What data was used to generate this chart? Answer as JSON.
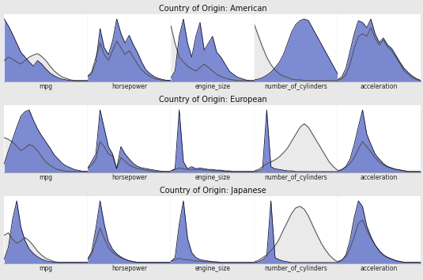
{
  "rows": [
    "American",
    "European",
    "Japanese"
  ],
  "cols": [
    "mpg",
    "horsepower",
    "engine_size",
    "number_of_cylinders",
    "acceleration"
  ],
  "fig_bg": "#e8e8e8",
  "panel_bg": "#ffffff",
  "blue_fill": "#6677cc",
  "blue_alpha": 0.85,
  "gray_line_color": "#555555",
  "blue_line_color": "#111133",
  "overall_fill_color": "#cccccc",
  "overall_fill_alpha": 0.4,
  "sep_line_color": "#777777",
  "American": {
    "mpg": {
      "group": [
        0.9,
        0.8,
        0.68,
        0.55,
        0.42,
        0.35,
        0.28,
        0.22,
        0.3,
        0.25,
        0.18,
        0.12,
        0.08,
        0.05,
        0.03,
        0.02,
        0.01,
        0.01,
        0.01,
        0.01,
        0.01
      ],
      "overall": [
        0.3,
        0.35,
        0.32,
        0.28,
        0.25,
        0.3,
        0.35,
        0.38,
        0.4,
        0.36,
        0.3,
        0.22,
        0.15,
        0.1,
        0.06,
        0.04,
        0.02,
        0.01,
        0.01,
        0.01,
        0.01
      ]
    },
    "horsepower": {
      "group": [
        0.05,
        0.08,
        0.2,
        0.55,
        0.35,
        0.28,
        0.42,
        0.65,
        0.5,
        0.4,
        0.48,
        0.38,
        0.3,
        0.2,
        0.12,
        0.08,
        0.05,
        0.03,
        0.02,
        0.01,
        0.01
      ],
      "overall": [
        0.05,
        0.1,
        0.25,
        0.4,
        0.28,
        0.22,
        0.32,
        0.42,
        0.35,
        0.28,
        0.32,
        0.25,
        0.18,
        0.12,
        0.08,
        0.05,
        0.03,
        0.02,
        0.01,
        0.01,
        0.01
      ]
    },
    "engine_size": {
      "group": [
        0.05,
        0.15,
        0.65,
        0.9,
        0.55,
        0.35,
        0.65,
        0.85,
        0.45,
        0.55,
        0.65,
        0.42,
        0.35,
        0.25,
        0.15,
        0.1,
        0.06,
        0.04,
        0.02,
        0.01,
        0.01
      ],
      "overall": [
        0.8,
        0.55,
        0.35,
        0.28,
        0.22,
        0.18,
        0.15,
        0.2,
        0.25,
        0.2,
        0.15,
        0.1,
        0.07,
        0.05,
        0.03,
        0.02,
        0.01,
        0.01,
        0.01,
        0.01,
        0.01
      ]
    },
    "number_of_cylinders": {
      "group": [
        0.02,
        0.03,
        0.05,
        0.08,
        0.12,
        0.18,
        0.25,
        0.35,
        0.5,
        0.65,
        0.75,
        0.8,
        0.82,
        0.8,
        0.7,
        0.6,
        0.5,
        0.4,
        0.3,
        0.2,
        0.1
      ],
      "overall": [
        0.75,
        0.6,
        0.45,
        0.32,
        0.22,
        0.15,
        0.1,
        0.07,
        0.05,
        0.03,
        0.02,
        0.02,
        0.01,
        0.01,
        0.01,
        0.01,
        0.01,
        0.01,
        0.01,
        0.01,
        0.01
      ]
    },
    "acceleration": {
      "group": [
        0.02,
        0.05,
        0.15,
        0.35,
        0.55,
        0.7,
        0.68,
        0.62,
        0.72,
        0.55,
        0.45,
        0.5,
        0.42,
        0.38,
        0.3,
        0.22,
        0.15,
        0.1,
        0.06,
        0.03,
        0.01
      ],
      "overall": [
        0.01,
        0.03,
        0.08,
        0.2,
        0.38,
        0.52,
        0.55,
        0.52,
        0.62,
        0.5,
        0.42,
        0.48,
        0.4,
        0.35,
        0.28,
        0.2,
        0.12,
        0.08,
        0.04,
        0.02,
        0.01
      ]
    }
  },
  "European": {
    "mpg": {
      "group": [
        0.1,
        0.25,
        0.38,
        0.52,
        0.65,
        0.7,
        0.72,
        0.6,
        0.5,
        0.42,
        0.35,
        0.28,
        0.2,
        0.15,
        0.1,
        0.07,
        0.05,
        0.03,
        0.02,
        0.01,
        0.01
      ],
      "overall": [
        0.4,
        0.38,
        0.35,
        0.3,
        0.25,
        0.28,
        0.32,
        0.3,
        0.25,
        0.18,
        0.12,
        0.08,
        0.05,
        0.03,
        0.02,
        0.01,
        0.01,
        0.01,
        0.01,
        0.01,
        0.01
      ]
    },
    "horsepower": {
      "group": [
        0.05,
        0.15,
        0.25,
        0.85,
        0.6,
        0.35,
        0.25,
        0.05,
        0.35,
        0.25,
        0.18,
        0.12,
        0.08,
        0.06,
        0.05,
        0.04,
        0.03,
        0.02,
        0.01,
        0.01,
        0.01
      ],
      "overall": [
        0.05,
        0.1,
        0.18,
        0.42,
        0.35,
        0.25,
        0.22,
        0.05,
        0.2,
        0.15,
        0.1,
        0.07,
        0.05,
        0.04,
        0.03,
        0.02,
        0.01,
        0.01,
        0.01,
        0.01,
        0.01
      ]
    },
    "engine_size": {
      "group": [
        0.02,
        0.05,
        0.88,
        0.15,
        0.05,
        0.08,
        0.05,
        0.06,
        0.05,
        0.04,
        0.04,
        0.03,
        0.03,
        0.02,
        0.02,
        0.01,
        0.01,
        0.01,
        0.01,
        0.01,
        0.01
      ],
      "overall": [
        0.02,
        0.04,
        0.06,
        0.05,
        0.04,
        0.04,
        0.04,
        0.04,
        0.03,
        0.03,
        0.02,
        0.02,
        0.02,
        0.01,
        0.01,
        0.01,
        0.01,
        0.01,
        0.01,
        0.01,
        0.01
      ]
    },
    "number_of_cylinders": {
      "group": [
        0.01,
        0.02,
        0.05,
        0.9,
        0.08,
        0.05,
        0.04,
        0.03,
        0.02,
        0.02,
        0.01,
        0.01,
        0.01,
        0.01,
        0.01,
        0.01,
        0.01,
        0.01,
        0.01,
        0.01,
        0.01
      ],
      "overall": [
        0.02,
        0.04,
        0.08,
        0.12,
        0.15,
        0.18,
        0.22,
        0.28,
        0.35,
        0.45,
        0.55,
        0.65,
        0.7,
        0.65,
        0.55,
        0.45,
        0.35,
        0.25,
        0.15,
        0.08,
        0.03
      ]
    },
    "acceleration": {
      "group": [
        0.01,
        0.03,
        0.08,
        0.18,
        0.38,
        0.62,
        0.85,
        0.52,
        0.38,
        0.25,
        0.18,
        0.12,
        0.08,
        0.06,
        0.04,
        0.03,
        0.02,
        0.01,
        0.01,
        0.01,
        0.01
      ],
      "overall": [
        0.02,
        0.04,
        0.07,
        0.12,
        0.2,
        0.32,
        0.42,
        0.35,
        0.28,
        0.2,
        0.14,
        0.1,
        0.07,
        0.05,
        0.04,
        0.03,
        0.02,
        0.01,
        0.01,
        0.01,
        0.01
      ]
    }
  },
  "Japanese": {
    "mpg": {
      "group": [
        0.05,
        0.2,
        0.55,
        0.78,
        0.45,
        0.28,
        0.18,
        0.12,
        0.08,
        0.05,
        0.03,
        0.02,
        0.01,
        0.01,
        0.01,
        0.01,
        0.01,
        0.01,
        0.01,
        0.01,
        0.01
      ],
      "overall": [
        0.35,
        0.38,
        0.3,
        0.25,
        0.28,
        0.32,
        0.28,
        0.22,
        0.15,
        0.1,
        0.06,
        0.04,
        0.02,
        0.01,
        0.01,
        0.01,
        0.01,
        0.01,
        0.01,
        0.01,
        0.01
      ]
    },
    "horsepower": {
      "group": [
        0.05,
        0.15,
        0.45,
        0.8,
        0.5,
        0.28,
        0.18,
        0.12,
        0.08,
        0.05,
        0.03,
        0.02,
        0.01,
        0.01,
        0.01,
        0.01,
        0.01,
        0.01,
        0.01,
        0.01,
        0.01
      ],
      "overall": [
        0.05,
        0.12,
        0.28,
        0.45,
        0.32,
        0.2,
        0.14,
        0.1,
        0.07,
        0.05,
        0.03,
        0.02,
        0.01,
        0.01,
        0.01,
        0.01,
        0.01,
        0.01,
        0.01,
        0.01,
        0.01
      ]
    },
    "engine_size": {
      "group": [
        0.02,
        0.08,
        0.55,
        0.88,
        0.35,
        0.15,
        0.08,
        0.05,
        0.04,
        0.03,
        0.02,
        0.02,
        0.01,
        0.01,
        0.01,
        0.01,
        0.01,
        0.01,
        0.01,
        0.01,
        0.01
      ],
      "overall": [
        0.03,
        0.05,
        0.07,
        0.05,
        0.05,
        0.04,
        0.03,
        0.03,
        0.02,
        0.02,
        0.02,
        0.01,
        0.01,
        0.01,
        0.01,
        0.01,
        0.01,
        0.01,
        0.01,
        0.01,
        0.01
      ]
    },
    "number_of_cylinders": {
      "group": [
        0.01,
        0.02,
        0.05,
        0.1,
        0.9,
        0.08,
        0.05,
        0.03,
        0.02,
        0.01,
        0.01,
        0.01,
        0.01,
        0.01,
        0.01,
        0.01,
        0.01,
        0.01,
        0.01,
        0.01,
        0.01
      ],
      "overall": [
        0.02,
        0.04,
        0.08,
        0.12,
        0.18,
        0.25,
        0.35,
        0.48,
        0.6,
        0.72,
        0.8,
        0.82,
        0.78,
        0.68,
        0.55,
        0.42,
        0.3,
        0.2,
        0.12,
        0.06,
        0.02
      ]
    },
    "acceleration": {
      "group": [
        0.01,
        0.03,
        0.1,
        0.28,
        0.55,
        0.75,
        0.68,
        0.45,
        0.32,
        0.22,
        0.15,
        0.1,
        0.07,
        0.05,
        0.03,
        0.02,
        0.01,
        0.01,
        0.01,
        0.01,
        0.01
      ],
      "overall": [
        0.02,
        0.04,
        0.08,
        0.18,
        0.32,
        0.48,
        0.52,
        0.4,
        0.3,
        0.22,
        0.15,
        0.1,
        0.07,
        0.05,
        0.03,
        0.02,
        0.01,
        0.01,
        0.01,
        0.01,
        0.01
      ]
    }
  }
}
